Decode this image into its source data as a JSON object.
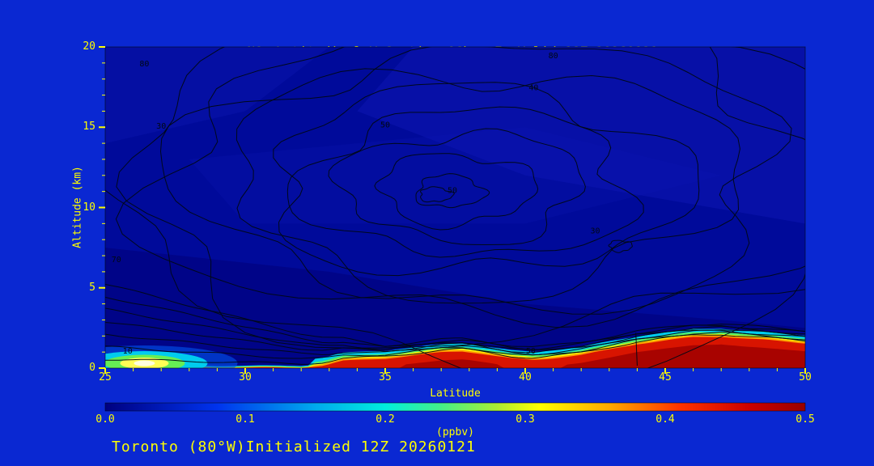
{
  "figure": {
    "title_prefix": "NO",
    "title_sub": "2",
    "title_rest": " Latitudinal Y-Section 06hr  Fx Valid 18Z 20260121",
    "footer": "Toronto (80°W)Initialized 12Z 20260121"
  },
  "colors": {
    "background": "#0A28D2",
    "plot_background": "#000A9A",
    "text": "#FFFF00",
    "contour_line": "#000814"
  },
  "chart_data": {
    "type": "heatmap",
    "title": "NO2 Latitudinal Y-Section 06hr  Fx Valid 18Z 20260121",
    "subtitle": "Toronto (80W) Initialized 12Z 20260121",
    "xlabel": "Latitude",
    "ylabel": "Altitude (km)",
    "xlim": [
      25,
      50
    ],
    "ylim": [
      0,
      20
    ],
    "x_ticks": [
      25,
      30,
      35,
      40,
      45,
      50
    ],
    "y_ticks": [
      0,
      5,
      10,
      15,
      20
    ],
    "grid_on": false,
    "colorbar": {
      "label": "(ppbv)",
      "min": 0.0,
      "max": 0.5,
      "ticks": [
        0.0,
        0.1,
        0.2,
        0.3,
        0.4,
        0.5
      ],
      "gradient": [
        {
          "at": 0.0,
          "color": "#000080"
        },
        {
          "at": 0.08,
          "color": "#0033EE"
        },
        {
          "at": 0.15,
          "color": "#00AAEE"
        },
        {
          "at": 0.2,
          "color": "#00EEDD"
        },
        {
          "at": 0.24,
          "color": "#44EE88"
        },
        {
          "at": 0.28,
          "color": "#AAEE33"
        },
        {
          "at": 0.31,
          "color": "#FFFF00"
        },
        {
          "at": 0.36,
          "color": "#FFAA00"
        },
        {
          "at": 0.41,
          "color": "#FF3300"
        },
        {
          "at": 0.46,
          "color": "#CC0000"
        },
        {
          "at": 0.5,
          "color": "#990000"
        }
      ]
    },
    "grid": {
      "latitudes": [
        25,
        27.5,
        30,
        32.5,
        35,
        37.5,
        40,
        42.5,
        45,
        47.5,
        50
      ],
      "altitudes_km": [
        0,
        0.5,
        1,
        2,
        5,
        10,
        15,
        20
      ],
      "ppbv": [
        [
          0.22,
          0.15,
          0.05,
          0.4,
          0.5,
          0.5,
          0.5,
          0.5,
          0.5,
          0.5,
          0.5
        ],
        [
          0.12,
          0.08,
          0.03,
          0.12,
          0.35,
          0.5,
          0.45,
          0.5,
          0.5,
          0.5,
          0.5
        ],
        [
          0.05,
          0.04,
          0.02,
          0.05,
          0.12,
          0.3,
          0.15,
          0.35,
          0.5,
          0.5,
          0.35
        ],
        [
          0.03,
          0.02,
          0.02,
          0.02,
          0.04,
          0.06,
          0.05,
          0.1,
          0.18,
          0.2,
          0.12
        ],
        [
          0.02,
          0.02,
          0.02,
          0.02,
          0.02,
          0.02,
          0.02,
          0.02,
          0.03,
          0.03,
          0.02
        ],
        [
          0.02,
          0.02,
          0.02,
          0.02,
          0.02,
          0.02,
          0.02,
          0.02,
          0.02,
          0.02,
          0.02
        ],
        [
          0.02,
          0.02,
          0.02,
          0.02,
          0.02,
          0.02,
          0.02,
          0.02,
          0.02,
          0.02,
          0.02
        ],
        [
          0.02,
          0.02,
          0.02,
          0.02,
          0.02,
          0.02,
          0.02,
          0.02,
          0.02,
          0.02,
          0.02
        ]
      ]
    },
    "surface_band_top_km": [
      [
        25,
        0.04
      ],
      [
        30,
        0.02
      ],
      [
        32,
        0.03
      ],
      [
        32.8,
        0.15
      ],
      [
        33.5,
        0.45
      ],
      [
        35,
        0.6
      ],
      [
        36,
        0.78
      ],
      [
        37,
        0.98
      ],
      [
        37.8,
        1.05
      ],
      [
        38.5,
        0.88
      ],
      [
        39.5,
        0.6
      ],
      [
        40.3,
        0.5
      ],
      [
        41,
        0.62
      ],
      [
        42,
        0.82
      ],
      [
        43,
        1.15
      ],
      [
        44,
        1.5
      ],
      [
        45,
        1.72
      ],
      [
        46,
        1.92
      ],
      [
        47,
        1.97
      ],
      [
        47.8,
        1.85
      ],
      [
        48.6,
        1.75
      ],
      [
        49.3,
        1.65
      ],
      [
        50,
        1.55
      ]
    ],
    "overlay_contours": {
      "values": [
        10,
        20,
        30,
        40,
        50,
        60,
        70,
        80
      ],
      "labels": [
        {
          "value": 80,
          "lat": 26.4,
          "km": 18.8
        },
        {
          "value": 80,
          "lat": 41.0,
          "km": 19.3
        },
        {
          "value": 30,
          "lat": 27.0,
          "km": 14.9
        },
        {
          "value": 40,
          "lat": 40.3,
          "km": 17.3
        },
        {
          "value": 50,
          "lat": 35.0,
          "km": 15.0
        },
        {
          "value": 50,
          "lat": 37.4,
          "km": 10.9
        },
        {
          "value": 30,
          "lat": 42.5,
          "km": 8.4
        },
        {
          "value": 70,
          "lat": 25.4,
          "km": 6.6
        },
        {
          "value": 10,
          "lat": 25.8,
          "km": 0.9
        },
        {
          "value": 50,
          "lat": 40.2,
          "km": 0.9
        }
      ]
    }
  }
}
